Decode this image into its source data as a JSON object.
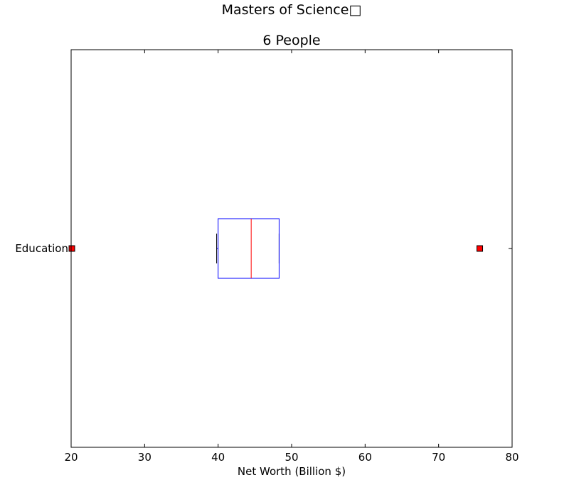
{
  "chart_data": {
    "type": "boxplot",
    "suptitle": "Masters of Science□",
    "title": "6 People",
    "xlabel": "Net Worth (Billion $)",
    "ylabel": "",
    "xlim": [
      20,
      80
    ],
    "xticks": [
      20,
      30,
      40,
      50,
      60,
      70,
      80
    ],
    "orientation": "horizontal",
    "grid": false,
    "categories": [
      "Education"
    ],
    "boxes": [
      {
        "category": "Education",
        "q1": 40.0,
        "median": 44.5,
        "q3": 48.3,
        "whisker_low": 39.8,
        "whisker_high": 48.3,
        "outliers": [
          20.1,
          75.6
        ]
      }
    ],
    "colors": {
      "box": "#0000ff",
      "median": "#ff0000",
      "whisker": "#0000ff",
      "cap": "#000000",
      "outlier_fill": "#ff0000",
      "outlier_edge": "#000000"
    }
  }
}
